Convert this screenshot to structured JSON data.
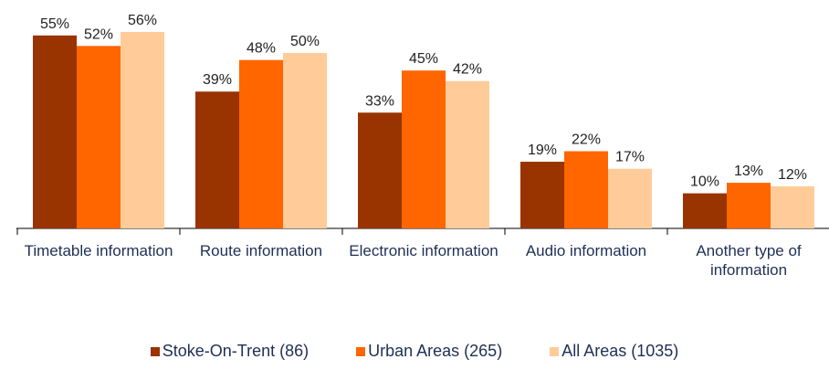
{
  "chart_data": {
    "type": "bar",
    "categories": [
      "Timetable information",
      "Route information",
      "Electronic information",
      "Audio information",
      "Another type of information"
    ],
    "series": [
      {
        "name": "Stoke-On-Trent (86)",
        "color": "#993300",
        "values": [
          55,
          39,
          33,
          19,
          10
        ],
        "value_labels": [
          "55%",
          "39%",
          "33%",
          "19%",
          "10%"
        ]
      },
      {
        "name": "Urban Areas (265)",
        "color": "#ff6600",
        "values": [
          52,
          48,
          45,
          22,
          13
        ],
        "value_labels": [
          "52%",
          "48%",
          "45%",
          "22%",
          "13%"
        ]
      },
      {
        "name": "All Areas (1035)",
        "color": "#ffcc99",
        "values": [
          56,
          50,
          42,
          17,
          12
        ],
        "value_labels": [
          "56%",
          "50%",
          "42%",
          "17%",
          "12%"
        ]
      }
    ],
    "legend": "bottom"
  }
}
